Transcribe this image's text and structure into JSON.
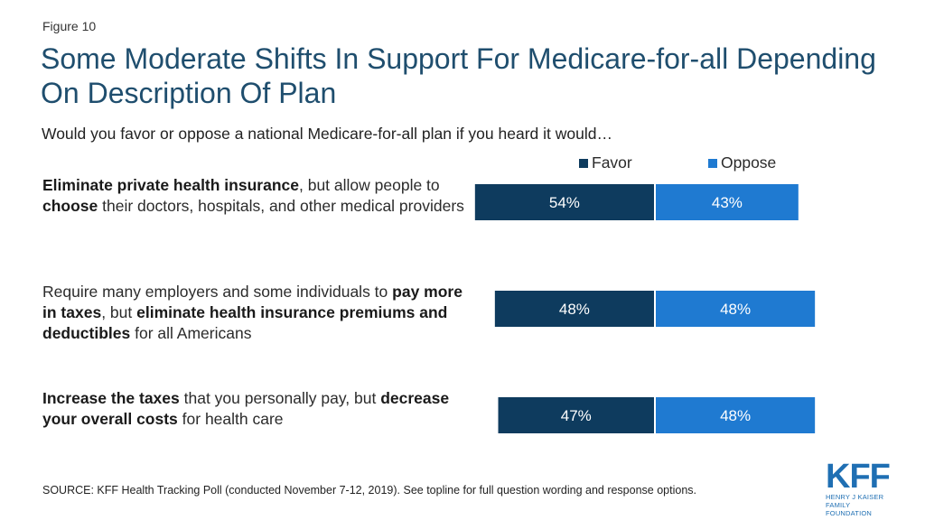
{
  "header": {
    "figure_label": "Figure 10",
    "title": "Some Moderate Shifts In Support For Medicare-for-all Depending On Description Of Plan",
    "subtitle": "Would you favor or oppose a national Medicare-for-all plan if you heard it would…"
  },
  "legend": {
    "favor_label": "Favor",
    "oppose_label": "Oppose"
  },
  "rows": [
    {
      "segments": [
        {
          "text": "Eliminate private health insurance",
          "bold": true
        },
        {
          "text": ", but allow people to ",
          "bold": false
        },
        {
          "text": "choose",
          "bold": true
        },
        {
          "text": " their doctors, hospitals, and other medical providers",
          "bold": false
        }
      ]
    },
    {
      "segments": [
        {
          "text": "Require many employers and some individuals to ",
          "bold": false
        },
        {
          "text": "pay more in taxes",
          "bold": true
        },
        {
          "text": ", but ",
          "bold": false
        },
        {
          "text": "eliminate health insurance premiums and deductibles",
          "bold": true
        },
        {
          "text": " for all Americans",
          "bold": false
        }
      ]
    },
    {
      "segments": [
        {
          "text": "Increase the taxes",
          "bold": true
        },
        {
          "text": " that you personally pay, but ",
          "bold": false
        },
        {
          "text": "decrease your overall costs",
          "bold": true
        },
        {
          "text": " for health care",
          "bold": false
        }
      ]
    }
  ],
  "colors": {
    "favor": "#0e3b5e",
    "oppose": "#1f7ad1",
    "label_text": "#ffffff"
  },
  "chart_data": {
    "type": "bar",
    "orientation": "horizontal-diverging",
    "categories": [
      "Eliminate private health insurance, but allow people to choose their doctors, hospitals, and other medical providers",
      "Require many employers and some individuals to pay more in taxes, but eliminate health insurance premiums and deductibles for all Americans",
      "Increase the taxes that you personally pay, but decrease your overall costs for health care"
    ],
    "series": [
      {
        "name": "Favor",
        "values": [
          54,
          48,
          47
        ],
        "labels": [
          "54%",
          "48%",
          "47%"
        ]
      },
      {
        "name": "Oppose",
        "values": [
          43,
          48,
          48
        ],
        "labels": [
          "43%",
          "48%",
          "48%"
        ]
      }
    ],
    "title": "",
    "xlabel": "",
    "ylabel": "",
    "grid": false,
    "legend_position": "top-right"
  },
  "footer": {
    "source": "SOURCE: KFF Health Tracking Poll (conducted November 7-12, 2019). See topline for full question wording and response options.",
    "logo_text": "KFF",
    "logo_org_line1": "HENRY J KAISER",
    "logo_org_line2": "FAMILY FOUNDATION"
  }
}
